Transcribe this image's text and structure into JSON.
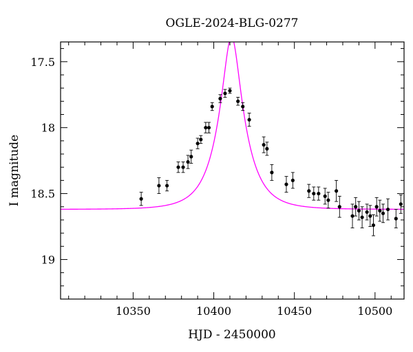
{
  "chart_data": {
    "type": "scatter",
    "title": "OGLE-2024-BLG-0277",
    "xlabel": "HJD - 2450000",
    "ylabel": "I magnitude",
    "xlim": [
      10305,
      10518
    ],
    "ylim": [
      19.3,
      17.35
    ],
    "y_inverted": true,
    "x_ticks": [
      10350,
      10400,
      10450,
      10500
    ],
    "x_tick_labels": [
      "10350",
      "10400",
      "10450",
      "10500"
    ],
    "y_ticks": [
      17.5,
      18,
      18.5,
      19
    ],
    "y_tick_labels": [
      "17.5",
      "18",
      "18.5",
      "19"
    ],
    "x_minor_step": 10,
    "y_minor_step": 0.1,
    "grid": false,
    "colors": {
      "points": "#000000",
      "model": "#ff00ff"
    },
    "series": [
      {
        "type": "scatter",
        "x": [
          10355,
          10366,
          10371,
          10378,
          10381,
          10384,
          10386,
          10390,
          10392,
          10395,
          10397,
          10399,
          10404,
          10407,
          10410,
          10415,
          10418,
          10422,
          10431,
          10433,
          10436,
          10445,
          10449,
          10459,
          10462,
          10465,
          10469,
          10471,
          10476,
          10478,
          10486,
          10488,
          10490,
          10492,
          10495,
          10497,
          10499,
          10501,
          10503,
          10505,
          10508,
          10513,
          10516
        ],
        "y": [
          18.54,
          18.44,
          18.44,
          18.3,
          18.3,
          18.26,
          18.22,
          18.12,
          18.09,
          18.0,
          18.0,
          17.84,
          17.78,
          17.74,
          17.72,
          17.8,
          17.84,
          17.94,
          18.13,
          18.16,
          18.34,
          18.43,
          18.4,
          18.48,
          18.5,
          18.5,
          18.52,
          18.55,
          18.48,
          18.6,
          18.67,
          18.6,
          18.63,
          18.68,
          18.64,
          18.67,
          18.74,
          18.6,
          18.63,
          18.65,
          18.62,
          18.69,
          18.58
        ],
        "err": [
          0.05,
          0.06,
          0.04,
          0.04,
          0.04,
          0.05,
          0.05,
          0.04,
          0.03,
          0.04,
          0.04,
          0.03,
          0.03,
          0.03,
          0.02,
          0.03,
          0.03,
          0.05,
          0.06,
          0.05,
          0.06,
          0.06,
          0.06,
          0.05,
          0.05,
          0.05,
          0.06,
          0.06,
          0.08,
          0.08,
          0.09,
          0.07,
          0.07,
          0.08,
          0.06,
          0.08,
          0.08,
          0.07,
          0.08,
          0.07,
          0.08,
          0.07,
          0.07
        ]
      },
      {
        "type": "line",
        "t0": 10411,
        "tE": 16,
        "u0": 0.31,
        "base": 18.62
      }
    ]
  }
}
